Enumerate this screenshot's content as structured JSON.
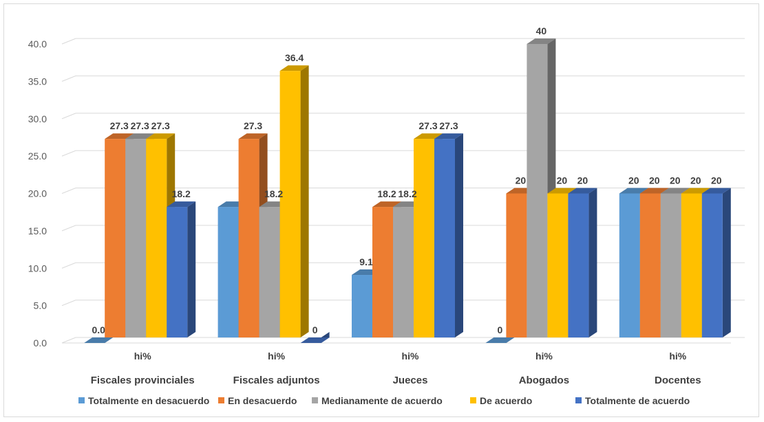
{
  "chart_data": {
    "type": "bar",
    "title": "",
    "xlabel": "",
    "ylabel": "",
    "ylim": [
      0,
      40
    ],
    "yticks": [
      "0.0",
      "5.0",
      "10.0",
      "15.0",
      "20.0",
      "25.0",
      "30.0",
      "35.0",
      "40.0"
    ],
    "grid": true,
    "legend_position": "bottom",
    "categories": [
      "Fiscales provinciales",
      "Fiscales adjuntos",
      "Jueces",
      "Abogados",
      "Docentes"
    ],
    "sub_label": "hi%",
    "series": [
      {
        "name": "Totalmente en desacuerdo",
        "color": "#5B9BD5",
        "values": [
          0.0,
          18.2,
          9.1,
          0,
          20
        ],
        "labels": [
          "0.0",
          "",
          "9.1",
          "0",
          "20"
        ]
      },
      {
        "name": "En desacuerdo",
        "color": "#ED7D31",
        "values": [
          27.3,
          27.3,
          18.2,
          20,
          20
        ],
        "labels": [
          "27.3",
          "27.3",
          "18.2",
          "20",
          "20"
        ]
      },
      {
        "name": "Medianamente de acuerdo",
        "color": "#A5A5A5",
        "values": [
          27.3,
          18.2,
          18.2,
          40,
          20
        ],
        "labels": [
          "27.3",
          "18.2",
          "18.2",
          "40",
          "20"
        ]
      },
      {
        "name": "De acuerdo",
        "color": "#FFC000",
        "values": [
          27.3,
          36.4,
          27.3,
          20,
          20
        ],
        "labels": [
          "27.3",
          "36.4",
          "27.3",
          "20",
          "20"
        ]
      },
      {
        "name": "Totalmente de acuerdo",
        "color": "#4472C4",
        "values": [
          18.2,
          0,
          27.3,
          20,
          20
        ],
        "labels": [
          "18.2",
          "0",
          "27.3",
          "20",
          "20"
        ]
      }
    ]
  }
}
